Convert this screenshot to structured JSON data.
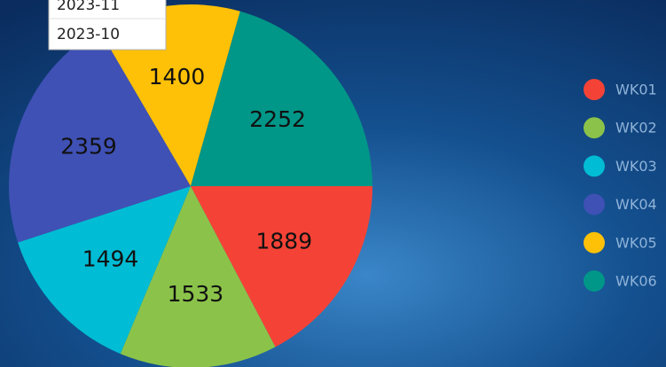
{
  "chart_data": {
    "type": "pie",
    "categories": [
      "WK01",
      "WK02",
      "WK03",
      "WK04",
      "WK05",
      "WK06"
    ],
    "values": [
      1889,
      1533,
      1494,
      2359,
      1400,
      2252
    ],
    "colors": [
      "#f44336",
      "#8bc34a",
      "#00bcd4",
      "#3f51b5",
      "#ffc107",
      "#009688"
    ],
    "legend": "right"
  },
  "dropdown": {
    "options": [
      "2023-11",
      "2023-10"
    ]
  }
}
